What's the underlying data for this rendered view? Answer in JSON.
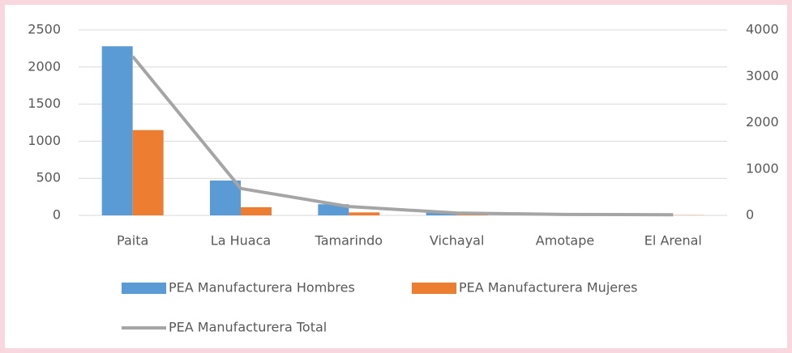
{
  "chart_data": {
    "type": "bar",
    "categories": [
      "Paita",
      "La Huaca",
      "Tamarindo",
      "Vichayal",
      "Amotape",
      "El Arenal"
    ],
    "series": [
      {
        "name": "PEA Manufacturera Hombres",
        "color": "#5b9bd5",
        "values": [
          2280,
          470,
          150,
          40,
          15,
          10
        ]
      },
      {
        "name": "PEA Manufacturera Mujeres",
        "color": "#ed7d31",
        "values": [
          1150,
          110,
          40,
          10,
          5,
          3
        ]
      },
      {
        "name": "PEA Manufacturera Total",
        "color": "#a5a5a5",
        "type": "line",
        "axis": "y2",
        "values": [
          3430,
          580,
          190,
          50,
          20,
          13
        ]
      }
    ],
    "ylim": [
      0,
      2500
    ],
    "yticks": [
      0,
      500,
      1000,
      1500,
      2000,
      2500
    ],
    "y2lim": [
      0,
      4000
    ],
    "y2ticks": [
      0,
      1000,
      2000,
      3000,
      4000
    ],
    "grid": true,
    "legend": "bottom"
  }
}
